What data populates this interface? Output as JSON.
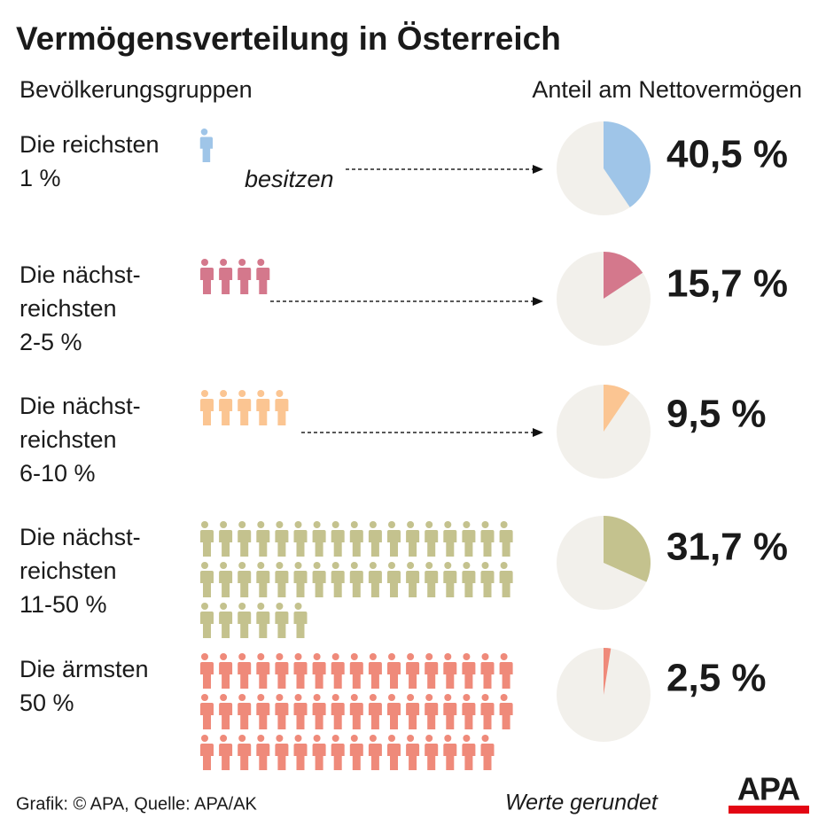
{
  "chart_data": {
    "type": "pie",
    "title": "Vermögensverteilung in Österreich",
    "left_header": "Bevölkerungsgruppen",
    "right_header": "Anteil am Nettovermögen",
    "annotation": "besitzen",
    "categories": [
      [
        "Die reichsten",
        "1 %"
      ],
      [
        "Die nächst-",
        "reichsten",
        "2-5 %"
      ],
      [
        "Die nächst-",
        "reichsten",
        "6-10 %"
      ],
      [
        "Die nächst-",
        "reichsten",
        "11-50 %"
      ],
      [
        "Die ärmsten",
        "50 %"
      ]
    ],
    "people": [
      1,
      4,
      5,
      40,
      50
    ],
    "values": [
      40.5,
      15.7,
      9.5,
      31.7,
      2.5
    ],
    "value_labels": [
      "40,5 %",
      "15,7 %",
      "9,5 %",
      "31,7 %",
      "2,5 %"
    ],
    "colors": [
      "#9fc5e8",
      "#d4788c",
      "#fbc592",
      "#c4c28e",
      "#ef8a7a"
    ],
    "pie_background": "#f2f0eb",
    "source": "Grafik: © APA, Quelle: APA/AK",
    "note": "Werte gerundet",
    "logo": "APA"
  }
}
